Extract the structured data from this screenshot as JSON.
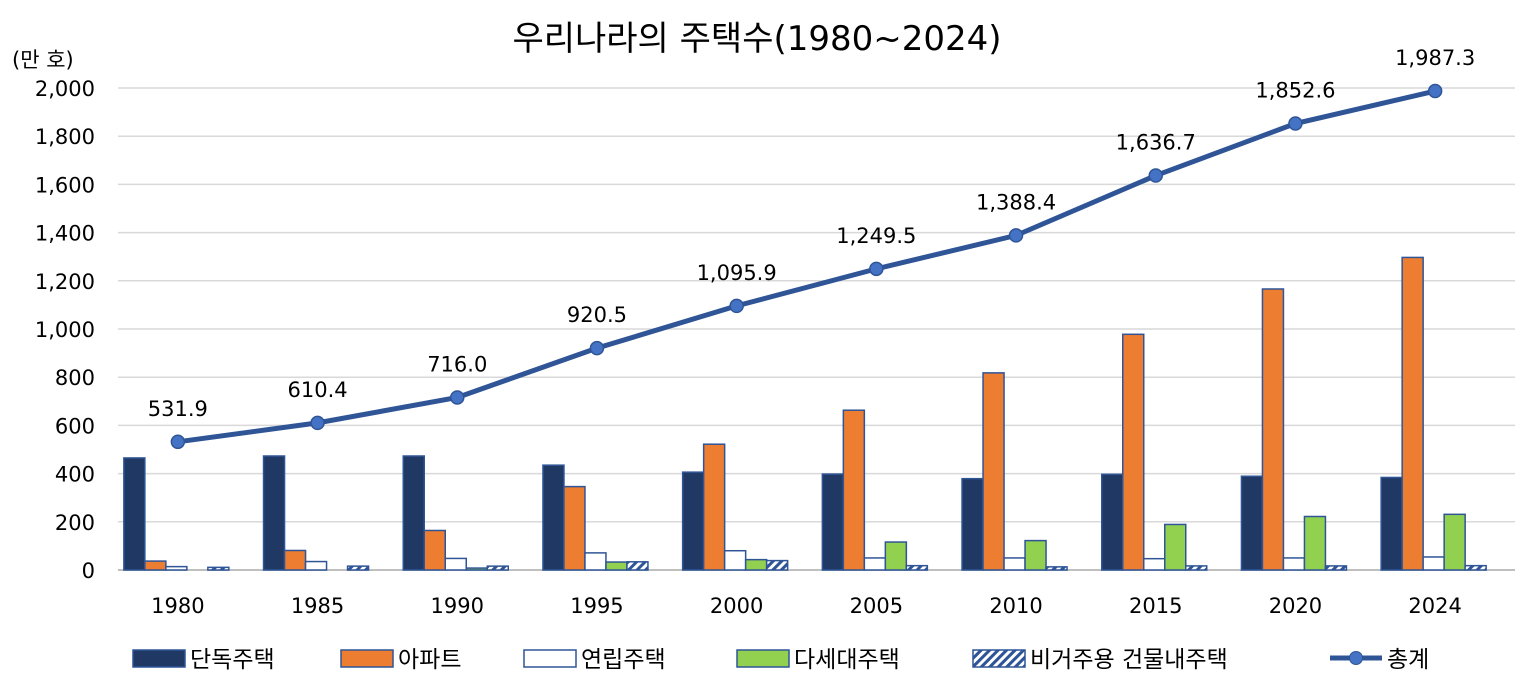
{
  "chart_data": {
    "type": "bar+line",
    "title": "우리나라의 주택수(1980~2024)",
    "yunit": "(만 호)",
    "ylim": [
      0,
      2000
    ],
    "yticks": [
      "0",
      "200",
      "400",
      "600",
      "800",
      "1,000",
      "1,200",
      "1,400",
      "1,600",
      "1,800",
      "2,000"
    ],
    "grid": true,
    "legend_position": "bottom",
    "categories": [
      "1980",
      "1985",
      "1990",
      "1995",
      "2000",
      "2005",
      "2010",
      "2015",
      "2020",
      "2024"
    ],
    "series": [
      {
        "name": "단독주택",
        "type": "bar",
        "color": "#1f3864",
        "values": [
          465,
          473,
          473,
          435,
          406,
          398,
          379,
          397,
          389,
          384
        ]
      },
      {
        "name": "아파트",
        "type": "bar",
        "color": "#ed7d31",
        "values": [
          37,
          81,
          164,
          346,
          522,
          663,
          818,
          978,
          1166,
          1297
        ]
      },
      {
        "name": "연립주택",
        "type": "bar",
        "color": "#ffffff",
        "values": [
          14,
          35,
          48,
          71,
          80,
          50,
          50,
          47,
          50,
          54
        ]
      },
      {
        "name": "다세대주택",
        "type": "bar",
        "color": "#92d050",
        "values": [
          0,
          0,
          8,
          33,
          43,
          116,
          122,
          189,
          222,
          231
        ]
      },
      {
        "name": "비거주용 건물내주택",
        "type": "bar",
        "color": "#4472c4",
        "pattern": "diagonal-stripes",
        "values": [
          11,
          16,
          16,
          34,
          39,
          18,
          13,
          17,
          17,
          18
        ]
      },
      {
        "name": "총계",
        "type": "line",
        "color": "#2f5597",
        "values": [
          531.9,
          610.4,
          716.0,
          920.5,
          1095.9,
          1249.5,
          1388.4,
          1636.7,
          1852.6,
          1987.3
        ],
        "labels": [
          "531.9",
          "610.4",
          "716.0",
          "920.5",
          "1,095.9",
          "1,249.5",
          "1,388.4",
          "1,636.7",
          "1,852.6",
          "1,987.3"
        ]
      }
    ]
  }
}
